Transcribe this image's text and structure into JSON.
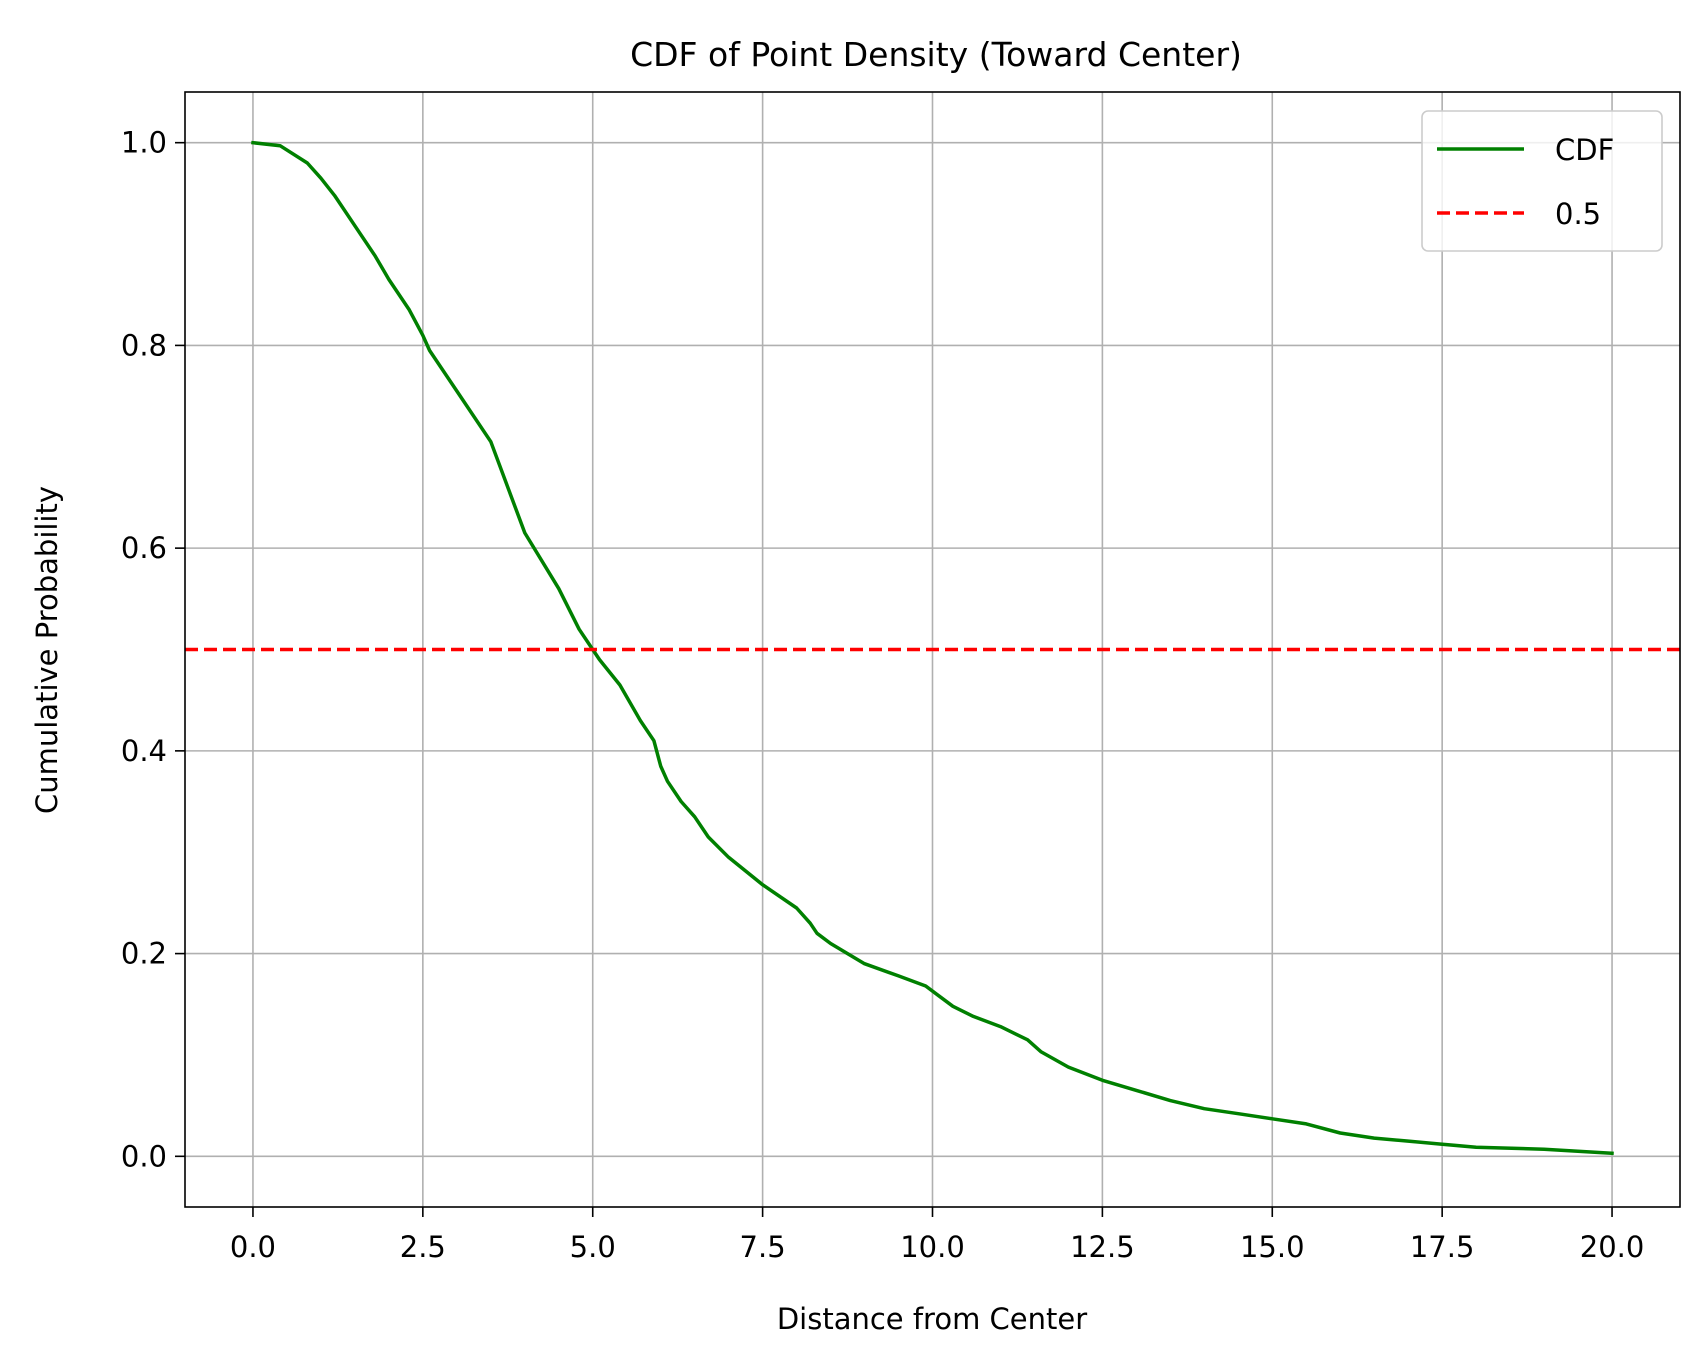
{
  "chart_data": {
    "type": "line",
    "title": "CDF of Point Density (Toward Center)",
    "xlabel": "Distance from Center",
    "ylabel": "Cumulative Probability",
    "xlim": [
      -1.0,
      21.0
    ],
    "ylim": [
      -0.05,
      1.05
    ],
    "grid": true,
    "legend_position": "top-right",
    "x_ticks": [
      0.0,
      2.5,
      5.0,
      7.5,
      10.0,
      12.5,
      15.0,
      17.5,
      20.0
    ],
    "x_tick_labels": [
      "0.0",
      "2.5",
      "5.0",
      "7.5",
      "10.0",
      "12.5",
      "15.0",
      "17.5",
      "20.0"
    ],
    "y_ticks": [
      0.0,
      0.2,
      0.4,
      0.6,
      0.8,
      1.0
    ],
    "y_tick_labels": [
      "0.0",
      "0.2",
      "0.4",
      "0.6",
      "0.8",
      "1.0"
    ],
    "series": [
      {
        "name": "CDF",
        "color": "#008000",
        "style": "solid",
        "x": [
          0.0,
          0.4,
          0.8,
          1.0,
          1.2,
          1.5,
          1.8,
          2.0,
          2.3,
          2.5,
          2.6,
          3.0,
          3.5,
          4.0,
          4.5,
          4.8,
          5.0,
          5.1,
          5.4,
          5.7,
          5.9,
          6.0,
          6.1,
          6.3,
          6.5,
          6.7,
          7.0,
          7.5,
          8.0,
          8.2,
          8.3,
          8.5,
          9.0,
          9.5,
          9.9,
          10.1,
          10.3,
          10.6,
          11.0,
          11.4,
          11.6,
          12.0,
          12.5,
          13.0,
          13.5,
          14.0,
          14.5,
          15.0,
          15.5,
          16.0,
          16.5,
          17.0,
          17.5,
          18.0,
          19.0,
          20.0
        ],
        "values": [
          1.0,
          0.997,
          0.98,
          0.965,
          0.948,
          0.918,
          0.888,
          0.865,
          0.835,
          0.81,
          0.795,
          0.755,
          0.705,
          0.615,
          0.56,
          0.52,
          0.5,
          0.49,
          0.465,
          0.43,
          0.41,
          0.385,
          0.37,
          0.35,
          0.335,
          0.315,
          0.295,
          0.268,
          0.245,
          0.23,
          0.22,
          0.21,
          0.19,
          0.178,
          0.168,
          0.158,
          0.148,
          0.138,
          0.128,
          0.115,
          0.103,
          0.088,
          0.075,
          0.065,
          0.055,
          0.047,
          0.042,
          0.037,
          0.032,
          0.023,
          0.018,
          0.015,
          0.012,
          0.009,
          0.007,
          0.003
        ]
      },
      {
        "name": "0.5",
        "color": "#ff0000",
        "style": "dashed",
        "hline": 0.5
      }
    ]
  }
}
